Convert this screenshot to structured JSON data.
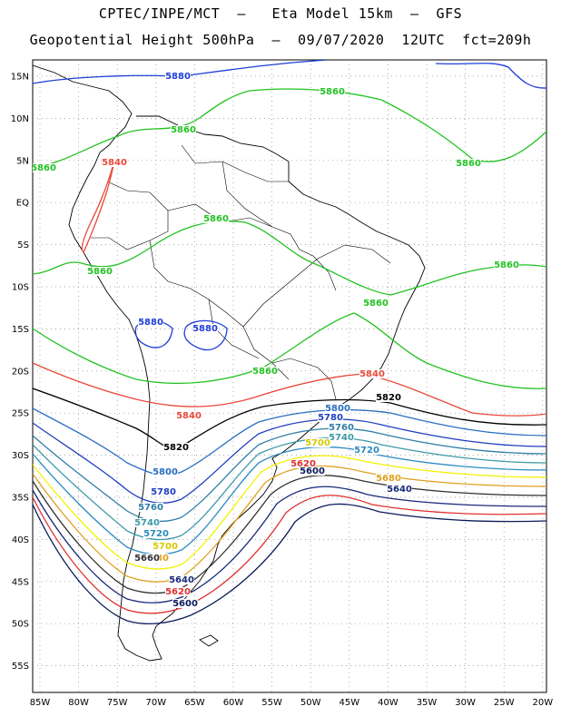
{
  "title_line1": "CPTEC/INPE/MCT  –   Eta Model 15km  –  GFS",
  "title_line2": "Geopotential Height 500hPa  –  09/07/2020  12UTC  fct=209h",
  "lat_labels": [
    "15N",
    "10N",
    "5N",
    "EQ",
    "5S",
    "10S",
    "15S",
    "20S",
    "25S",
    "30S",
    "35S",
    "40S",
    "45S",
    "50S",
    "55S"
  ],
  "lon_labels": [
    "85W",
    "80W",
    "75W",
    "70W",
    "65W",
    "60W",
    "55W",
    "50W",
    "45W",
    "40W",
    "35W",
    "30W",
    "25W",
    "20W"
  ],
  "contour_levels": [
    {
      "level": "5880",
      "color": "#1f3fd8"
    },
    {
      "level": "5860",
      "color": "#22c222"
    },
    {
      "level": "5840",
      "color": "#e84a3a"
    },
    {
      "level": "5820",
      "color": "#000000"
    },
    {
      "level": "5800",
      "color": "#2b6fc0"
    },
    {
      "level": "5780",
      "color": "#1f3fbf"
    },
    {
      "level": "5760",
      "color": "#2f7ea8"
    },
    {
      "level": "5740",
      "color": "#3c9aa8"
    },
    {
      "level": "5720",
      "color": "#2b8abf"
    },
    {
      "level": "5700",
      "color": "#f2f200"
    },
    {
      "level": "5680",
      "color": "#e0a020"
    },
    {
      "level": "5660",
      "color": "#303030"
    },
    {
      "level": "5640",
      "color": "#1a2a7a"
    },
    {
      "level": "5620",
      "color": "#e03030"
    },
    {
      "level": "5600",
      "color": "#0a1a5a"
    }
  ]
}
